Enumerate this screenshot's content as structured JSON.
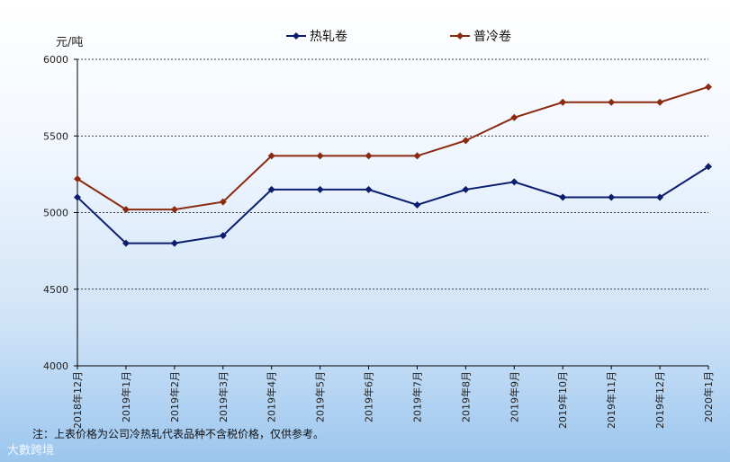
{
  "chart_data": {
    "type": "line",
    "unit_label": "元/吨",
    "categories": [
      "2018年12月",
      "2019年1月",
      "2019年2月",
      "2019年3月",
      "2019年4月",
      "2019年5月",
      "2019年6月",
      "2019年7月",
      "2019年8月",
      "2019年9月",
      "2019年10月",
      "2019年11月",
      "2019年12月",
      "2020年1月"
    ],
    "series": [
      {
        "name": "热轧卷",
        "color": "#0b1d6e",
        "values": [
          5100,
          4800,
          4800,
          4850,
          5150,
          5150,
          5150,
          5050,
          5150,
          5200,
          5100,
          5100,
          5100,
          5300
        ]
      },
      {
        "name": "普冷卷",
        "color": "#8b2a10",
        "values": [
          5220,
          5020,
          5020,
          5070,
          5370,
          5370,
          5370,
          5370,
          5470,
          5620,
          5720,
          5720,
          5720,
          5820
        ]
      }
    ],
    "ylim": [
      4000,
      6000
    ],
    "yticks": [
      4000,
      4500,
      5000,
      5500,
      6000
    ],
    "grid": true,
    "legend_position": "top-center"
  },
  "footnote": "注：上表价格为公司冷热轧代表品种不含税价格，仅供参考。",
  "watermark": "大數跨境"
}
